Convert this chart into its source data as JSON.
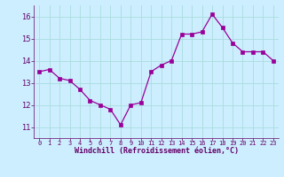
{
  "x": [
    0,
    1,
    2,
    3,
    4,
    5,
    6,
    7,
    8,
    9,
    10,
    11,
    12,
    13,
    14,
    15,
    16,
    17,
    18,
    19,
    20,
    21,
    22,
    23
  ],
  "y": [
    13.5,
    13.6,
    13.2,
    13.1,
    12.7,
    12.2,
    12.0,
    11.8,
    11.1,
    12.0,
    12.1,
    13.5,
    13.8,
    14.0,
    15.2,
    15.2,
    15.3,
    16.1,
    15.5,
    14.8,
    14.4,
    14.4,
    14.4,
    14.0
  ],
  "line_color": "#990099",
  "marker_color": "#990099",
  "bg_color": "#cceeff",
  "grid_color": "#aadddd",
  "xlabel": "Windchill (Refroidissement éolien,°C)",
  "label_color": "#660066",
  "tick_color": "#660066",
  "ylim": [
    10.5,
    16.5
  ],
  "xlim": [
    -0.5,
    23.5
  ],
  "yticks": [
    11,
    12,
    13,
    14,
    15,
    16
  ],
  "xtick_labels": [
    "0",
    "1",
    "2",
    "3",
    "4",
    "5",
    "6",
    "7",
    "8",
    "9",
    "10",
    "11",
    "12",
    "13",
    "14",
    "15",
    "16",
    "17",
    "18",
    "19",
    "20",
    "21",
    "22",
    "23"
  ]
}
